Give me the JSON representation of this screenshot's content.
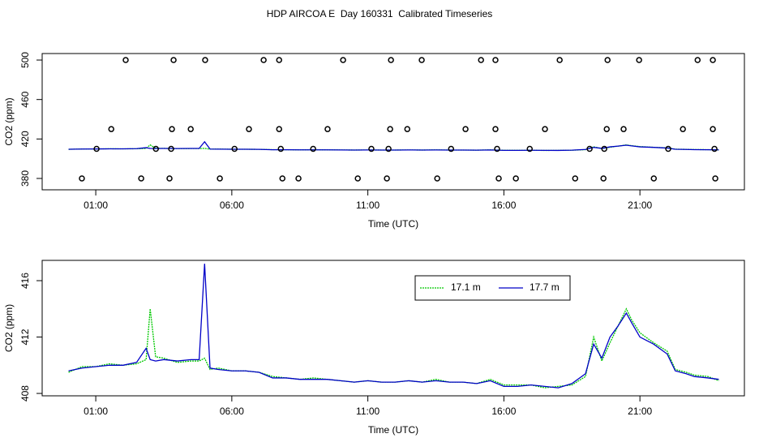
{
  "chart_data": [
    {
      "type": "scatter",
      "title": "HDP AIRCOA E  Day 160331  Calibrated Timeseries",
      "xlabel": "Time (UTC)",
      "ylabel": "CO2 (ppm)",
      "xlim": [
        -0.97,
        24.84
      ],
      "ylim": [
        368.5,
        506.6
      ],
      "xticks": [
        {
          "value": 1,
          "label": "01:00"
        },
        {
          "value": 6,
          "label": "06:00"
        },
        {
          "value": 11,
          "label": "11:00"
        },
        {
          "value": 16,
          "label": "16:00"
        },
        {
          "value": 21,
          "label": "21:00"
        }
      ],
      "yticks": [
        380,
        420,
        460,
        500
      ],
      "color": "#000000",
      "x": [
        2.1,
        3.86,
        5.02,
        7.17,
        7.74,
        10.09,
        11.85,
        12.98,
        15.16,
        15.69,
        18.05,
        19.81,
        20.97,
        23.12,
        23.68,
        1.57,
        3.8,
        4.49,
        6.63,
        7.74,
        9.52,
        11.82,
        12.45,
        14.59,
        15.69,
        17.51,
        19.78,
        20.4,
        22.58,
        23.68,
        1.03,
        3.21,
        3.77,
        6.1,
        7.8,
        8.99,
        11.13,
        11.76,
        14.06,
        15.75,
        16.95,
        19.15,
        19.69,
        22.04,
        23.74,
        0.49,
        2.67,
        3.71,
        5.56,
        7.86,
        8.45,
        10.63,
        11.7,
        13.55,
        15.81,
        16.44,
        18.62,
        19.66,
        21.51,
        23.77
      ],
      "y": [
        500,
        500,
        500,
        500,
        500,
        500,
        500,
        500,
        500,
        500,
        500,
        500,
        500,
        500,
        500,
        430,
        430,
        430,
        430,
        430,
        430,
        430,
        430,
        430,
        430,
        430,
        430,
        430,
        430,
        430,
        410,
        410,
        410,
        410,
        410,
        410,
        410,
        410,
        410,
        410,
        410,
        410,
        410,
        410,
        410,
        380,
        380,
        380,
        380,
        380,
        380,
        380,
        380,
        380,
        380,
        380,
        380,
        380,
        380,
        380
      ]
    },
    {
      "type": "line",
      "xlabel": "Time (UTC)",
      "ylabel": "CO2 (ppm)",
      "xlim": [
        -0.97,
        24.84
      ],
      "ylim": [
        407.83,
        417.44
      ],
      "xticks": [
        {
          "value": 1,
          "label": "01:00"
        },
        {
          "value": 6,
          "label": "06:00"
        },
        {
          "value": 11,
          "label": "11:00"
        },
        {
          "value": 16,
          "label": "16:00"
        },
        {
          "value": 21,
          "label": "21:00"
        }
      ],
      "yticks": [
        408,
        412,
        416
      ],
      "legend": "top",
      "x": [
        0,
        0.5,
        1,
        1.5,
        2,
        2.5,
        2.85,
        3,
        3.2,
        3.5,
        4,
        4.5,
        4.8,
        5,
        5.2,
        5.5,
        6,
        6.5,
        7,
        7.5,
        8,
        8.5,
        9,
        9.5,
        10,
        10.5,
        11,
        11.5,
        12,
        12.5,
        13,
        13.5,
        14,
        14.5,
        15,
        15.5,
        16,
        16.5,
        17,
        17.5,
        18,
        18.5,
        19,
        19.3,
        19.6,
        19.9,
        20.2,
        20.5,
        20.7,
        21,
        21.5,
        22,
        22.3,
        22.7,
        23,
        23.5,
        23.9
      ],
      "series": [
        {
          "name": "17.1 m",
          "color": "#00c800",
          "dashed": true,
          "values": [
            409.5,
            409.9,
            409.9,
            410.1,
            410.0,
            410.1,
            410.4,
            414.0,
            410.6,
            410.5,
            410.2,
            410.3,
            410.3,
            410.5,
            409.7,
            409.8,
            409.6,
            409.6,
            409.5,
            409.2,
            409.1,
            409.0,
            409.1,
            409.0,
            408.9,
            408.8,
            408.9,
            408.8,
            408.8,
            408.9,
            408.8,
            409.0,
            408.8,
            408.8,
            408.7,
            409.0,
            408.6,
            408.6,
            408.6,
            408.4,
            408.5,
            408.6,
            409.2,
            412.0,
            410.3,
            411.6,
            412.8,
            414.0,
            413.2,
            412.3,
            411.6,
            411.0,
            409.7,
            409.5,
            409.3,
            409.2,
            408.9
          ]
        },
        {
          "name": "17.7 m",
          "color": "#0000c8",
          "dashed": false,
          "values": [
            409.6,
            409.8,
            409.9,
            410.0,
            410.0,
            410.2,
            411.2,
            410.4,
            410.3,
            410.4,
            410.3,
            410.4,
            410.4,
            417.2,
            409.8,
            409.7,
            409.6,
            409.6,
            409.5,
            409.1,
            409.1,
            409.0,
            409.0,
            409.0,
            408.9,
            408.8,
            408.9,
            408.8,
            408.8,
            408.9,
            408.8,
            408.9,
            408.8,
            408.8,
            408.7,
            408.9,
            408.5,
            408.5,
            408.6,
            408.5,
            408.4,
            408.7,
            409.4,
            411.5,
            410.5,
            412.0,
            412.8,
            413.7,
            413.0,
            412.0,
            411.5,
            410.8,
            409.6,
            409.4,
            409.2,
            409.1,
            409.0
          ]
        }
      ]
    }
  ]
}
